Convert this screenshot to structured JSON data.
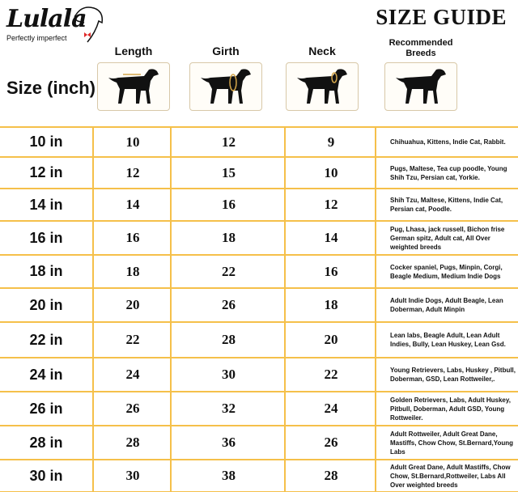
{
  "brand": {
    "name": "Lulala",
    "tagline": "Perfectly imperfect"
  },
  "title": "SIZE GUIDE",
  "size_header": "Size (inch)",
  "columns": [
    {
      "label": "Length",
      "icon": "dog-length-icon"
    },
    {
      "label": "Girth",
      "icon": "dog-girth-icon"
    },
    {
      "label": "Neck",
      "icon": "dog-neck-icon"
    },
    {
      "label": "Recommended Breeds",
      "icon": "dog-icon"
    }
  ],
  "colors": {
    "grid": "#f5c04a",
    "text": "#111111"
  },
  "rows": [
    {
      "size": "10 in",
      "length": "10",
      "girth": "12",
      "neck": "9",
      "breeds": "Chihuahua, Kittens, Indie Cat, Rabbit."
    },
    {
      "size": "12 in",
      "length": "12",
      "girth": "15",
      "neck": "10",
      "breeds": "Pugs, Maltese, Tea cup poodle, Young Shih Tzu, Persian cat, Yorkie."
    },
    {
      "size": "14 in",
      "length": "14",
      "girth": "16",
      "neck": "12",
      "breeds": "Shih Tzu, Maltese, Kittens, Indie Cat, Persian cat, Poodle."
    },
    {
      "size": "16 in",
      "length": "16",
      "girth": "18",
      "neck": "14",
      "breeds": "Pug, Lhasa, jack russell, Bichon frise German spitz, Adult cat, All Over weighted breeds"
    },
    {
      "size": "18 in",
      "length": "18",
      "girth": "22",
      "neck": "16",
      "breeds": "Cocker spaniel, Pugs, Minpin, Corgi, Beagle Medium, Medium Indie Dogs"
    },
    {
      "size": "20 in",
      "length": "20",
      "girth": "26",
      "neck": "18",
      "breeds": "Adult Indie Dogs,  Adult Beagle, Lean Doberman, Adult Minpin"
    },
    {
      "size": "22 in",
      "length": "22",
      "girth": "28",
      "neck": "20",
      "breeds": "Lean labs, Beagle Adult, Lean Adult Indies, Bully, Lean Huskey, Lean Gsd."
    },
    {
      "size": "24 in",
      "length": "24",
      "girth": "30",
      "neck": "22",
      "breeds": "Young Retrievers, Labs, Huskey , Pitbull, Doberman, GSD, Lean Rottweiler,."
    },
    {
      "size": "26 in",
      "length": "26",
      "girth": "32",
      "neck": "24",
      "breeds": "Golden Retrievers, Labs, Adult Huskey, Pitbull, Doberman, Adult GSD, Young Rottweiler."
    },
    {
      "size": "28 in",
      "length": "28",
      "girth": "36",
      "neck": "26",
      "breeds": "Adult Rottweiler, Adult  Great Dane, Mastiffs, Chow Chow, St.Bernard,Young Labs"
    },
    {
      "size": "30 in",
      "length": "30",
      "girth": "38",
      "neck": "28",
      "breeds": "Adult  Great Dane, Adult Mastiffs, Chow Chow, St.Bernard,Rottweiler, Labs All Over weighted breeds"
    }
  ]
}
